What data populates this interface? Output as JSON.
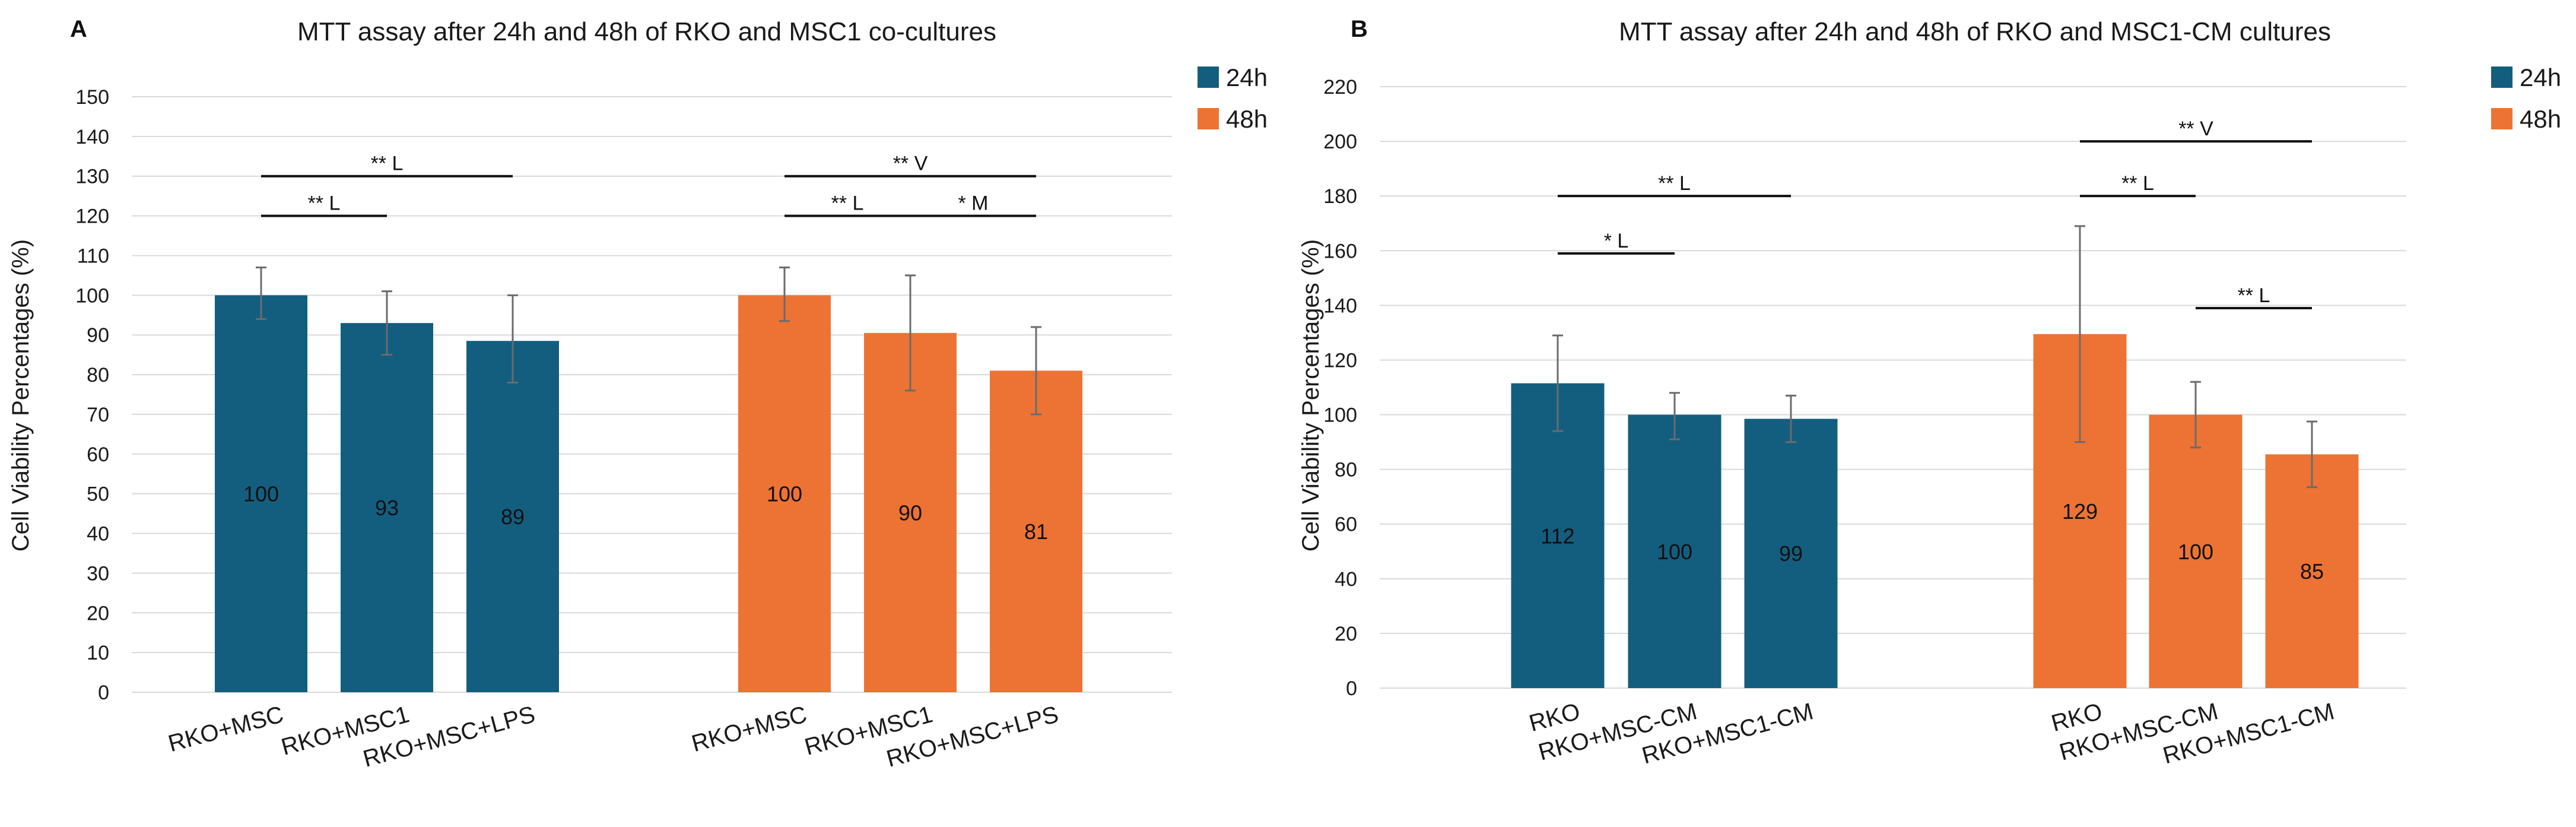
{
  "colors": {
    "24h": "#135E7F",
    "48h": "#EC7334"
  },
  "chart_data": [
    {
      "panel": "A",
      "type": "bar",
      "title": "MTT assay after 24h and 48h of RKO and MSC1 co-cultures",
      "ylabel": "Cell Viability Percentages (%)",
      "xlabel": "",
      "ylim": [
        0,
        150
      ],
      "ytick_step": 10,
      "yticks": [
        "0",
        "10",
        "20",
        "30",
        "40",
        "50",
        "60",
        "70",
        "80",
        "90",
        "100",
        "110",
        "120",
        "130",
        "140",
        "150"
      ],
      "legend": [
        {
          "name": "24h"
        },
        {
          "name": "48h"
        }
      ],
      "groups": [
        {
          "series": "24h",
          "bars": [
            {
              "category": "RKO+MSC",
              "value": 100,
              "label": "100",
              "error_low": 94,
              "error_high": 107
            },
            {
              "category": "RKO+MSC1",
              "value": 93,
              "label": "93",
              "error_low": 85,
              "error_high": 101
            },
            {
              "category": "RKO+MSC+LPS",
              "value": 88.5,
              "label": "89",
              "error_low": 78,
              "error_high": 100
            }
          ]
        },
        {
          "series": "48h",
          "bars": [
            {
              "category": "RKO+MSC",
              "value": 100,
              "label": "100",
              "error_low": 93.5,
              "error_high": 107
            },
            {
              "category": "RKO+MSC1",
              "value": 90.5,
              "label": "90",
              "error_low": 76,
              "error_high": 105
            },
            {
              "category": "RKO+MSC+LPS",
              "value": 81,
              "label": "81",
              "error_low": 70,
              "error_high": 92
            }
          ]
        }
      ],
      "significance": [
        {
          "label": "** L",
          "from": [
            0,
            0
          ],
          "to": [
            0,
            2
          ],
          "y": 130
        },
        {
          "label": "** L",
          "from": [
            0,
            0
          ],
          "to": [
            0,
            1
          ],
          "y": 120
        },
        {
          "label": "** V",
          "from": [
            1,
            0
          ],
          "to": [
            1,
            2
          ],
          "y": 130
        },
        {
          "label": "** L",
          "from": [
            1,
            0
          ],
          "to": [
            1,
            1
          ],
          "y": 120
        },
        {
          "label": "* M",
          "from": [
            1,
            1
          ],
          "to": [
            1,
            2
          ],
          "y": 120
        }
      ]
    },
    {
      "panel": "B",
      "type": "bar",
      "title": "MTT assay after 24h and 48h of RKO and MSC1-CM cultures",
      "ylabel": "Cell Viability Percentages (%)",
      "xlabel": "",
      "ylim": [
        0,
        220
      ],
      "ytick_step": 20,
      "yticks": [
        "0",
        "20",
        "40",
        "60",
        "80",
        "100",
        "120",
        "140",
        "160",
        "180",
        "200",
        "220"
      ],
      "legend": [
        {
          "name": "24h"
        },
        {
          "name": "48h"
        }
      ],
      "groups": [
        {
          "series": "24h",
          "bars": [
            {
              "category": "RKO",
              "value": 111.5,
              "label": "112",
              "error_low": 94,
              "error_high": 129
            },
            {
              "category": "RKO+MSC-CM",
              "value": 100,
              "label": "100",
              "error_low": 91,
              "error_high": 108
            },
            {
              "category": "RKO+MSC1-CM",
              "value": 98.5,
              "label": "99",
              "error_low": 90,
              "error_high": 107
            }
          ]
        },
        {
          "series": "48h",
          "bars": [
            {
              "category": "RKO",
              "value": 129.5,
              "label": "129",
              "error_low": 90,
              "error_high": 169
            },
            {
              "category": "RKO+MSC-CM",
              "value": 100,
              "label": "100",
              "error_low": 88,
              "error_high": 112
            },
            {
              "category": "RKO+MSC1-CM",
              "value": 85.5,
              "label": "85",
              "error_low": 73.5,
              "error_high": 97.5
            }
          ]
        }
      ],
      "significance": [
        {
          "label": "** L",
          "from": [
            0,
            0
          ],
          "to": [
            0,
            2
          ],
          "y": 180
        },
        {
          "label": "* L",
          "from": [
            0,
            0
          ],
          "to": [
            0,
            1
          ],
          "y": 159
        },
        {
          "label": "** V",
          "from": [
            1,
            0
          ],
          "to": [
            1,
            2
          ],
          "y": 200
        },
        {
          "label": "** L",
          "from": [
            1,
            0
          ],
          "to": [
            1,
            1
          ],
          "y": 180
        },
        {
          "label": "** L",
          "from": [
            1,
            1
          ],
          "to": [
            1,
            2
          ],
          "y": 139
        }
      ]
    }
  ]
}
